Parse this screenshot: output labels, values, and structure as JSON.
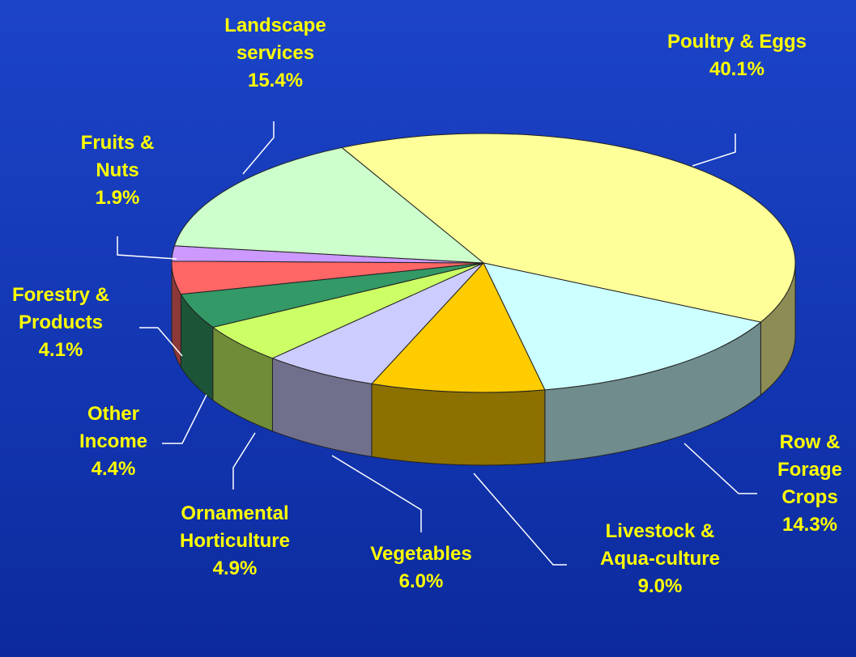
{
  "chart_data": {
    "type": "pie",
    "categories": [
      "Poultry & Eggs",
      "Row & Forage Crops",
      "Livestock & Aqua-culture",
      "Vegetables",
      "Ornamental Horticulture",
      "Other Income",
      "Forestry & Products",
      "Fruits & Nuts",
      "Landscape services"
    ],
    "values": [
      40.1,
      14.3,
      9.0,
      6.0,
      4.9,
      4.4,
      4.1,
      1.9,
      15.4
    ],
    "value_labels": [
      "40.1%",
      "14.3%",
      "9.0%",
      "6.0%",
      "4.9%",
      "4.4%",
      "4.1%",
      "1.9%",
      "15.4%"
    ],
    "colors": [
      "#ffff99",
      "#ccffff",
      "#ffcc00",
      "#ccccff",
      "#ccff66",
      "#339966",
      "#ff6666",
      "#cc99ff",
      "#ccffcc"
    ]
  }
}
